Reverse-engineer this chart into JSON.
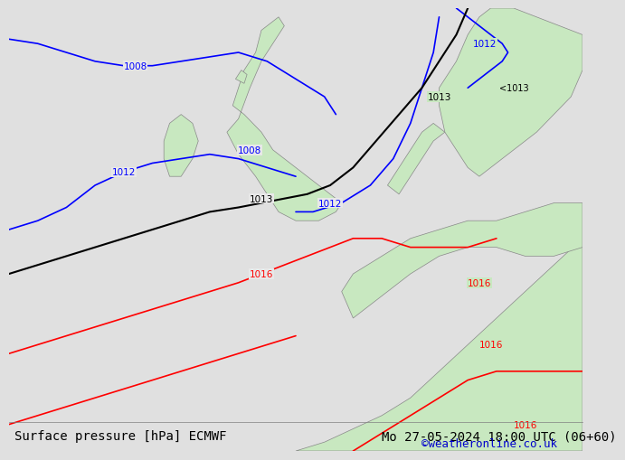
{
  "title_left": "Surface pressure [hPa] ECMWF",
  "title_right": "Mo 27-05-2024 18:00 UTC (06+60)",
  "credit": "©weatheronline.co.uk",
  "bg_color": "#e8e8e8",
  "land_color": "#c8e8c0",
  "border_color": "#888888",
  "title_fontsize": 10,
  "credit_fontsize": 9,
  "credit_color": "#0000cc",
  "isobar_blue_label": [
    "1008",
    "1008",
    "1012",
    "1012"
  ],
  "isobar_black_label": [
    "1013",
    "1013",
    "1013"
  ],
  "isobar_red_label": [
    "1016",
    "1016",
    "1016",
    "1016"
  ]
}
